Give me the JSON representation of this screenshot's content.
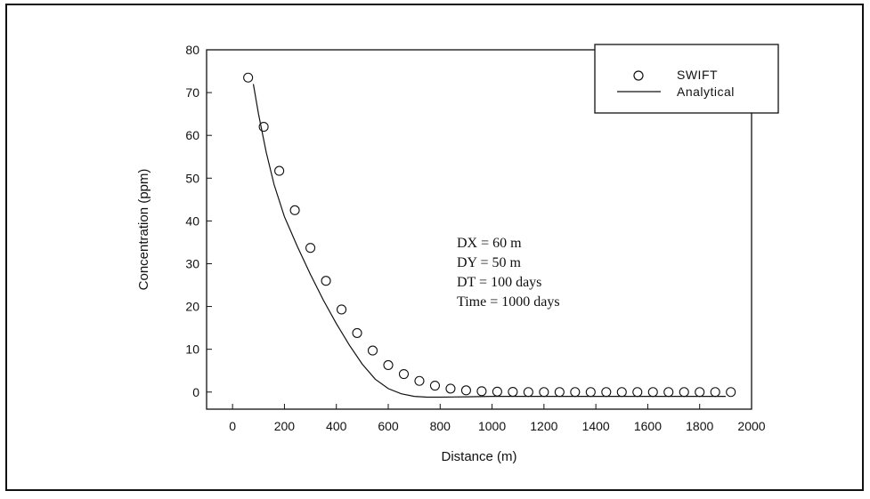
{
  "chart_data": {
    "type": "scatter",
    "xlabel": "Distance (m)",
    "ylabel": "Concentration (ppm)",
    "xlim": [
      -100,
      2000
    ],
    "ylim": [
      -4,
      80
    ],
    "xticks": [
      "0",
      "200",
      "400",
      "600",
      "800",
      "1000",
      "1200",
      "1400",
      "1600",
      "1800",
      "2000"
    ],
    "yticks": [
      "0",
      "10",
      "20",
      "30",
      "40",
      "50",
      "60",
      "70",
      "80"
    ],
    "grid": false,
    "legend_position": "top-right",
    "legend": [
      {
        "label": "SWIFT",
        "marker": "open-circle"
      },
      {
        "label": "Analytical",
        "marker": "line"
      }
    ],
    "series": [
      {
        "name": "SWIFT",
        "kind": "markers",
        "x": [
          60,
          120,
          180,
          240,
          300,
          360,
          420,
          480,
          540,
          600,
          660,
          720,
          780,
          840,
          900,
          960,
          1020,
          1080,
          1140,
          1200,
          1260,
          1320,
          1380,
          1440,
          1500,
          1560,
          1620,
          1680,
          1740,
          1800,
          1860,
          1920
        ],
        "y": [
          73.5,
          62,
          51.7,
          42.5,
          33.7,
          26,
          19.3,
          13.8,
          9.7,
          6.3,
          4.2,
          2.6,
          1.5,
          0.8,
          0.4,
          0.2,
          0.1,
          0.05,
          0,
          0,
          0,
          0,
          0,
          0,
          0,
          0,
          0,
          0,
          0,
          0,
          0,
          0
        ]
      },
      {
        "name": "Analytical",
        "kind": "line",
        "x": [
          80,
          100,
          130,
          160,
          200,
          250,
          300,
          350,
          400,
          450,
          500,
          550,
          600,
          650,
          700,
          750,
          800,
          900,
          1000,
          1200,
          1500,
          1800,
          1900
        ],
        "y": [
          72,
          65,
          56,
          48.5,
          41,
          34,
          27.5,
          21.5,
          16,
          11,
          6.5,
          3,
          0.8,
          -0.4,
          -1,
          -1.2,
          -1.2,
          -1.1,
          -1,
          -1,
          -1,
          -1,
          -1
        ]
      }
    ],
    "annotation": [
      "DX = 60 m",
      "DY = 50 m",
      "DT = 100 days",
      "Time = 1000 days"
    ]
  }
}
